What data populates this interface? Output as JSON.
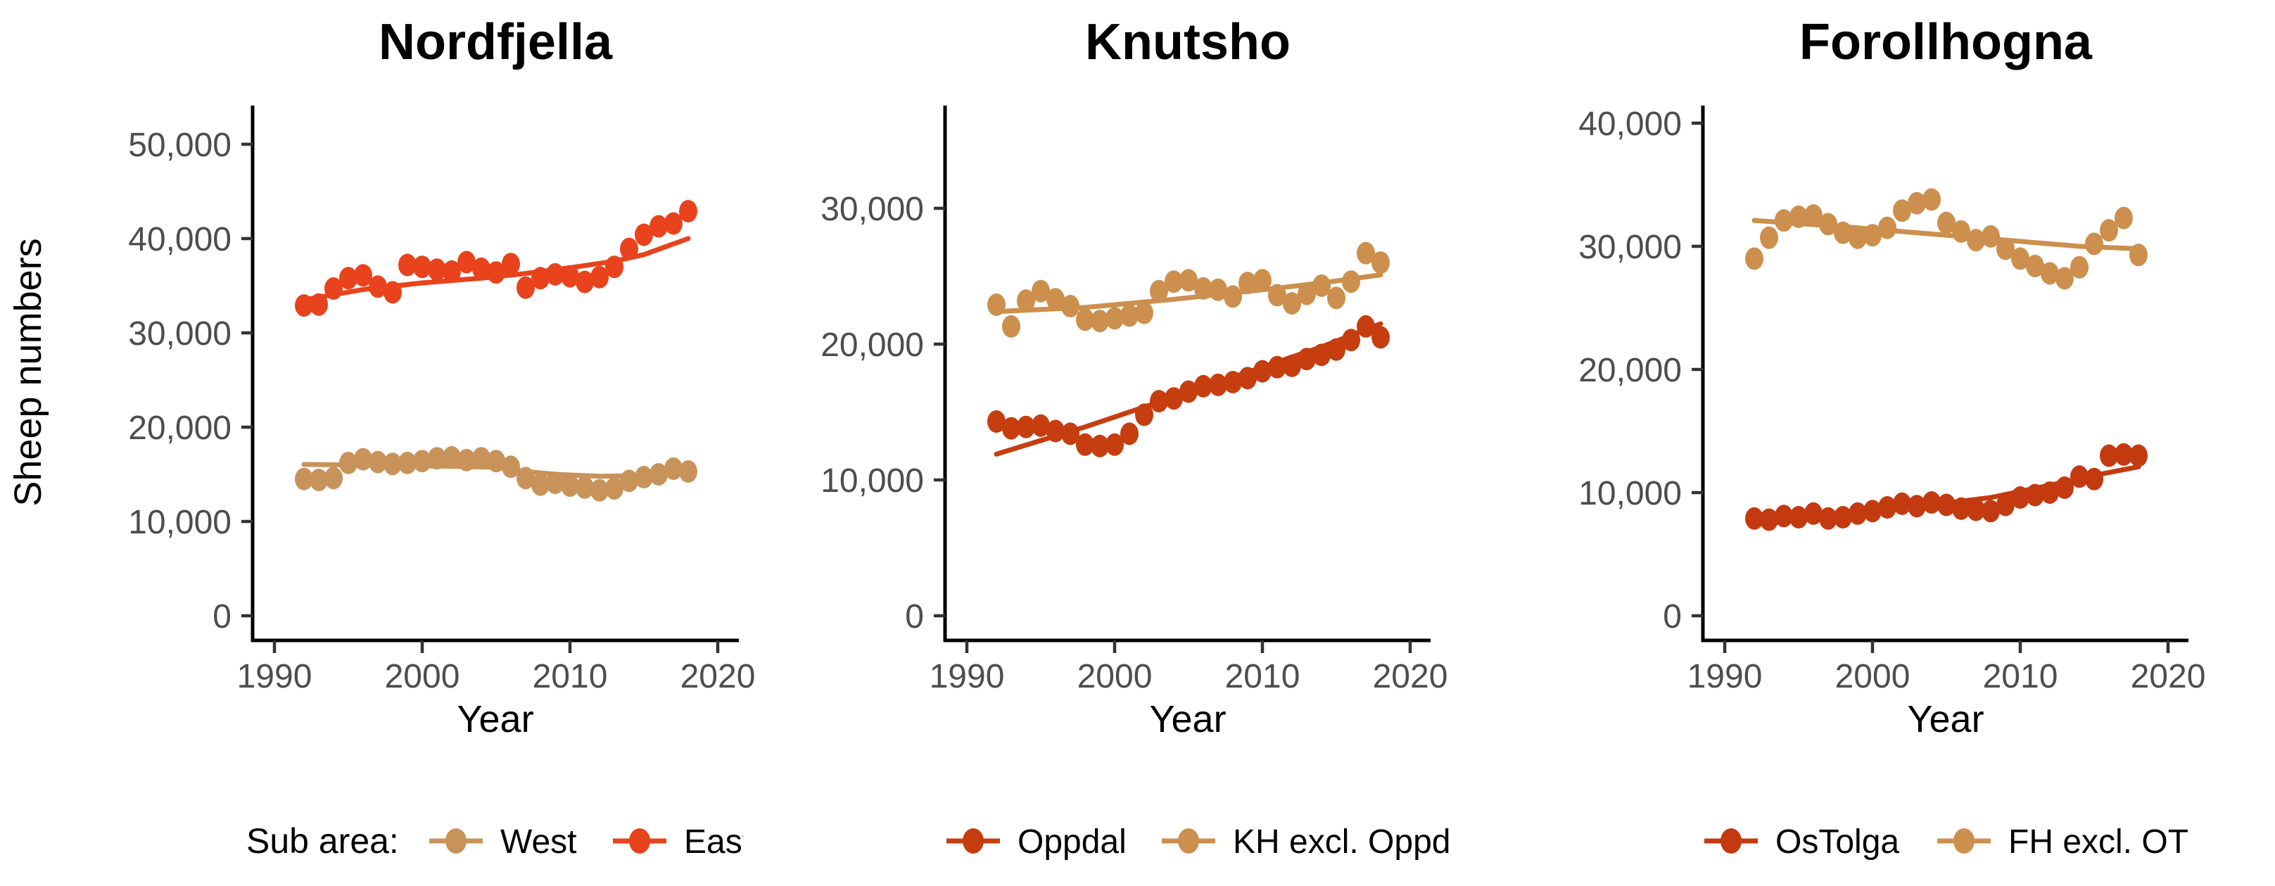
{
  "figure": {
    "y_axis_label": "Sheep numbers",
    "x_axis_label": "Year",
    "legend_title": "Sub area:",
    "x_ticks": [
      1990,
      2000,
      2010,
      2020
    ],
    "years": [
      1992,
      1993,
      1994,
      1995,
      1996,
      1997,
      1998,
      1999,
      2000,
      2001,
      2002,
      2003,
      2004,
      2005,
      2006,
      2007,
      2008,
      2009,
      2010,
      2011,
      2012,
      2013,
      2014,
      2015,
      2016,
      2017,
      2018
    ]
  },
  "chart_data": [
    {
      "type": "scatter",
      "title": "Nordfjella",
      "xlabel": "Year",
      "ylabel": "Sheep numbers",
      "xlim": [
        1988.5,
        2021.5
      ],
      "ylim": [
        0,
        54100
      ],
      "y_ticks": [
        0,
        10000,
        20000,
        30000,
        40000,
        50000
      ],
      "y_tick_labels": [
        "0",
        "10,000",
        "20,000",
        "30,000",
        "40,000",
        "50,000"
      ],
      "legend_position": "bottom",
      "grid": false,
      "x": [
        1992,
        1993,
        1994,
        1995,
        1996,
        1997,
        1998,
        1999,
        2000,
        2001,
        2002,
        2003,
        2004,
        2005,
        2006,
        2007,
        2008,
        2009,
        2010,
        2011,
        2012,
        2013,
        2014,
        2015,
        2016,
        2017,
        2018
      ],
      "series": [
        {
          "name": "West",
          "color": "#C8935A",
          "values": [
            14500,
            14400,
            14600,
            16200,
            16600,
            16300,
            16100,
            16200,
            16400,
            16700,
            16800,
            16500,
            16700,
            16400,
            15800,
            14600,
            13900,
            14100,
            13800,
            13600,
            13300,
            13500,
            14300,
            14700,
            15000,
            15600,
            15300
          ],
          "trend_x": [
            1992,
            1997,
            2002,
            2005,
            2007,
            2009,
            2012,
            2015,
            2018
          ],
          "trend_y": [
            16050,
            15950,
            15850,
            15750,
            15300,
            15000,
            14800,
            14850,
            15050
          ]
        },
        {
          "name": "East",
          "color": "#E8431C",
          "values": [
            32900,
            33000,
            34700,
            35800,
            36100,
            34900,
            34300,
            37200,
            37000,
            36700,
            36500,
            37500,
            36800,
            36400,
            37300,
            34800,
            35800,
            36200,
            36000,
            35400,
            35900,
            37000,
            38900,
            40400,
            41300,
            41600,
            42900
          ],
          "trend_x": [
            1992,
            1996,
            2000,
            2004,
            2007,
            2010,
            2013,
            2015,
            2018
          ],
          "trend_y": [
            33500,
            34600,
            35300,
            35800,
            36300,
            36900,
            37600,
            38300,
            40000
          ]
        }
      ]
    },
    {
      "type": "scatter",
      "title": "Knutsho",
      "xlabel": "Year",
      "ylabel": "Sheep numbers",
      "xlim": [
        1988.5,
        2021.5
      ],
      "ylim": [
        0,
        37600
      ],
      "y_ticks": [
        0,
        10000,
        20000,
        30000
      ],
      "y_tick_labels": [
        "0",
        "10,000",
        "20,000",
        "30,000"
      ],
      "legend_position": "bottom",
      "grid": false,
      "x": [
        1992,
        1993,
        1994,
        1995,
        1996,
        1997,
        1998,
        1999,
        2000,
        2001,
        2002,
        2003,
        2004,
        2005,
        2006,
        2007,
        2008,
        2009,
        2010,
        2011,
        2012,
        2013,
        2014,
        2015,
        2016,
        2017,
        2018
      ],
      "series": [
        {
          "name": "Oppdal",
          "color": "#C63D0F",
          "values": [
            14300,
            13800,
            13900,
            14000,
            13600,
            13400,
            12600,
            12500,
            12600,
            13400,
            14800,
            15800,
            16000,
            16500,
            16900,
            17000,
            17200,
            17500,
            18000,
            18300,
            18400,
            18900,
            19200,
            19600,
            20300,
            21300,
            20500
          ],
          "trend_x": [
            1992,
            1998,
            2004,
            2010,
            2014,
            2018
          ],
          "trend_y": [
            11900,
            13900,
            16100,
            18300,
            19800,
            21500
          ]
        },
        {
          "name": "KH excl. Oppd",
          "color": "#CC8F4D",
          "values": [
            22900,
            21300,
            23200,
            23900,
            23300,
            22800,
            21800,
            21700,
            21900,
            22100,
            22300,
            23900,
            24600,
            24700,
            24100,
            24000,
            23500,
            24500,
            24700,
            23600,
            23000,
            23700,
            24300,
            23400,
            24600,
            26700,
            26000
          ],
          "trend_x": [
            1992,
            1998,
            2004,
            2010,
            2014,
            2018
          ],
          "trend_y": [
            22400,
            22700,
            23300,
            24000,
            24500,
            25100
          ]
        }
      ]
    },
    {
      "type": "scatter",
      "title": "Forollhogna",
      "xlabel": "Year",
      "ylabel": "Sheep numbers",
      "xlim": [
        1988.5,
        2021.5
      ],
      "ylim": [
        0,
        41400
      ],
      "y_ticks": [
        0,
        10000,
        20000,
        30000,
        40000
      ],
      "y_tick_labels": [
        "0",
        "10,000",
        "20,000",
        "30,000",
        "40,000"
      ],
      "legend_position": "bottom",
      "grid": false,
      "x": [
        1992,
        1993,
        1994,
        1995,
        1996,
        1997,
        1998,
        1999,
        2000,
        2001,
        2002,
        2003,
        2004,
        2005,
        2006,
        2007,
        2008,
        2009,
        2010,
        2011,
        2012,
        2013,
        2014,
        2015,
        2016,
        2017,
        2018
      ],
      "series": [
        {
          "name": "OsTolga",
          "color": "#C43A10",
          "values": [
            7900,
            7800,
            8100,
            8000,
            8300,
            7900,
            8000,
            8300,
            8500,
            8800,
            9100,
            8900,
            9200,
            9000,
            8700,
            8600,
            8500,
            9000,
            9600,
            9800,
            10000,
            10400,
            11300,
            11100,
            13000,
            13100,
            13000
          ],
          "trend_x": [
            1992,
            1998,
            2004,
            2008,
            2012,
            2015,
            2018
          ],
          "trend_y": [
            7400,
            8100,
            9000,
            9600,
            10600,
            11400,
            12100
          ]
        },
        {
          "name": "FH excl. OT",
          "color": "#CC8F4D",
          "values": [
            29000,
            30700,
            32100,
            32400,
            32500,
            31800,
            31100,
            30700,
            30900,
            31500,
            32900,
            33500,
            33800,
            31900,
            31200,
            30500,
            30800,
            29800,
            29000,
            28400,
            27800,
            27400,
            28300,
            30200,
            31300,
            32300,
            29300
          ],
          "trend_x": [
            1992,
            1998,
            2004,
            2010,
            2014,
            2018
          ],
          "trend_y": [
            32100,
            31600,
            31000,
            30400,
            30000,
            29800
          ]
        }
      ]
    }
  ]
}
